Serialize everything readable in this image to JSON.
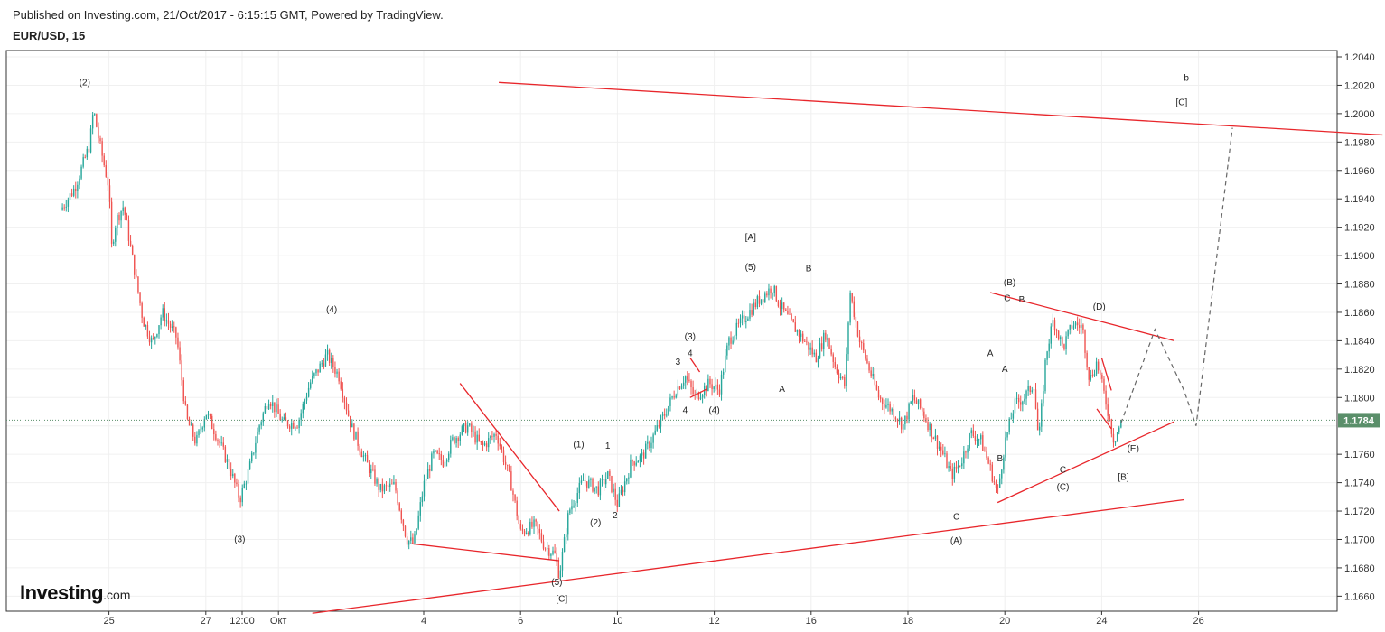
{
  "header": {
    "published": "Published on Investing.com, 21/Oct/2017 - 6:15:15 GMT, Powered by TradingView.",
    "symbol": "EUR/USD, 15"
  },
  "logo": {
    "main": "Investing",
    "sub": ".com"
  },
  "colors": {
    "up": "#26a69a",
    "down": "#ef5350",
    "trendline": "#e8262b",
    "projection": "#666666",
    "last_price_bg": "#5a8f6a",
    "grid": "#f0f0f0"
  },
  "chart_data": {
    "type": "candlestick",
    "title": "EUR/USD, 15",
    "xlabel": "",
    "ylabel": "",
    "ylim": [
      1.165,
      1.2045
    ],
    "grid": true,
    "y_ticks": [
      "1.2040",
      "1.2020",
      "1.2000",
      "1.1980",
      "1.1960",
      "1.1940",
      "1.1920",
      "1.1900",
      "1.1880",
      "1.1860",
      "1.1840",
      "1.1820",
      "1.1800",
      "1.1780",
      "1.1760",
      "1.1740",
      "1.1720",
      "1.1700",
      "1.1680",
      "1.1660"
    ],
    "x_ticks": [
      {
        "label": "25",
        "t": 1.0
      },
      {
        "label": "27",
        "t": 3.0
      },
      {
        "label": "12:00",
        "t": 3.75
      },
      {
        "label": "Окт",
        "t": 4.5
      },
      {
        "label": "4",
        "t": 7.5
      },
      {
        "label": "6",
        "t": 9.5
      },
      {
        "label": "10",
        "t": 11.5
      },
      {
        "label": "12",
        "t": 13.5
      },
      {
        "label": "16",
        "t": 15.5
      },
      {
        "label": "18",
        "t": 17.5
      },
      {
        "label": "20",
        "t": 19.5
      },
      {
        "label": "24",
        "t": 21.5
      },
      {
        "label": "26",
        "t": 23.5
      }
    ],
    "last_price": "1.1784",
    "price_path": [
      [
        0.0,
        1.1932
      ],
      [
        0.3,
        1.1948
      ],
      [
        0.6,
        1.1978
      ],
      [
        0.68,
        1.2003
      ],
      [
        0.8,
        1.198
      ],
      [
        1.0,
        1.1948
      ],
      [
        1.05,
        1.1905
      ],
      [
        1.15,
        1.1925
      ],
      [
        1.3,
        1.1935
      ],
      [
        1.5,
        1.1895
      ],
      [
        1.7,
        1.1855
      ],
      [
        1.9,
        1.1838
      ],
      [
        2.1,
        1.186
      ],
      [
        2.4,
        1.1842
      ],
      [
        2.6,
        1.1785
      ],
      [
        2.8,
        1.1768
      ],
      [
        3.0,
        1.179
      ],
      [
        3.2,
        1.1775
      ],
      [
        3.5,
        1.175
      ],
      [
        3.7,
        1.1728
      ],
      [
        3.9,
        1.175
      ],
      [
        4.1,
        1.178
      ],
      [
        4.3,
        1.18
      ],
      [
        4.6,
        1.1782
      ],
      [
        4.9,
        1.1782
      ],
      [
        5.15,
        1.181
      ],
      [
        5.5,
        1.183
      ],
      [
        5.75,
        1.1815
      ],
      [
        6.0,
        1.178
      ],
      [
        6.3,
        1.1755
      ],
      [
        6.6,
        1.1735
      ],
      [
        6.9,
        1.1738
      ],
      [
        7.15,
        1.17
      ],
      [
        7.3,
        1.1697
      ],
      [
        7.5,
        1.1738
      ],
      [
        7.7,
        1.176
      ],
      [
        7.9,
        1.1755
      ],
      [
        8.1,
        1.177
      ],
      [
        8.4,
        1.178
      ],
      [
        8.7,
        1.1765
      ],
      [
        9.0,
        1.1775
      ],
      [
        9.3,
        1.174
      ],
      [
        9.5,
        1.1705
      ],
      [
        9.8,
        1.171
      ],
      [
        10.0,
        1.1695
      ],
      [
        10.2,
        1.169
      ],
      [
        10.3,
        1.1675
      ],
      [
        10.5,
        1.172
      ],
      [
        10.8,
        1.1742
      ],
      [
        11.1,
        1.1735
      ],
      [
        11.3,
        1.1745
      ],
      [
        11.5,
        1.1725
      ],
      [
        11.8,
        1.1755
      ],
      [
        12.0,
        1.1758
      ],
      [
        12.2,
        1.177
      ],
      [
        12.5,
        1.179
      ],
      [
        12.7,
        1.1805
      ],
      [
        12.9,
        1.1815
      ],
      [
        13.1,
        1.18
      ],
      [
        13.4,
        1.181
      ],
      [
        13.6,
        1.1805
      ],
      [
        13.8,
        1.184
      ],
      [
        14.1,
        1.1855
      ],
      [
        14.4,
        1.1868
      ],
      [
        14.7,
        1.1878
      ],
      [
        14.85,
        1.1865
      ],
      [
        15.1,
        1.1852
      ],
      [
        15.4,
        1.1838
      ],
      [
        15.6,
        1.1828
      ],
      [
        15.8,
        1.1845
      ],
      [
        16.0,
        1.1822
      ],
      [
        16.2,
        1.1808
      ],
      [
        16.3,
        1.1875
      ],
      [
        16.5,
        1.184
      ],
      [
        16.7,
        1.182
      ],
      [
        16.9,
        1.18
      ],
      [
        17.2,
        1.179
      ],
      [
        17.4,
        1.178
      ],
      [
        17.6,
        1.18
      ],
      [
        17.8,
        1.179
      ],
      [
        18.0,
        1.1775
      ],
      [
        18.2,
        1.1762
      ],
      [
        18.4,
        1.1745
      ],
      [
        18.6,
        1.1755
      ],
      [
        18.8,
        1.1775
      ],
      [
        19.0,
        1.177
      ],
      [
        19.2,
        1.175
      ],
      [
        19.35,
        1.1732
      ],
      [
        19.5,
        1.1768
      ],
      [
        19.7,
        1.1795
      ],
      [
        19.9,
        1.18
      ],
      [
        20.1,
        1.181
      ],
      [
        20.2,
        1.1768
      ],
      [
        20.35,
        1.183
      ],
      [
        20.5,
        1.1855
      ],
      [
        20.7,
        1.1835
      ],
      [
        20.9,
        1.1852
      ],
      [
        21.1,
        1.185
      ],
      [
        21.25,
        1.1812
      ],
      [
        21.4,
        1.1825
      ],
      [
        21.6,
        1.1795
      ],
      [
        21.75,
        1.177
      ],
      [
        21.9,
        1.1782
      ]
    ],
    "trendlines": [
      {
        "name": "upper-resistance",
        "points": [
          [
            9.05,
            1.2022
          ],
          [
            27.3,
            1.1985
          ]
        ]
      },
      {
        "name": "lower-channel",
        "points": [
          [
            5.2,
            1.1648
          ],
          [
            23.2,
            1.1728
          ]
        ]
      },
      {
        "name": "oct-lower-support",
        "points": [
          [
            7.25,
            1.1697
          ],
          [
            10.3,
            1.1685
          ]
        ]
      },
      {
        "name": "oct-falling-line",
        "points": [
          [
            8.25,
            1.181
          ],
          [
            10.3,
            1.172
          ]
        ]
      },
      {
        "name": "triangle-upper",
        "points": [
          [
            19.2,
            1.1874
          ],
          [
            23.0,
            1.184
          ]
        ]
      },
      {
        "name": "triangle-lower",
        "points": [
          [
            19.35,
            1.1726
          ],
          [
            23.0,
            1.1783
          ]
        ]
      },
      {
        "name": "small-wave-1",
        "points": [
          [
            13.0,
            1.1828
          ],
          [
            13.2,
            1.1818
          ]
        ]
      },
      {
        "name": "small-wave-2",
        "points": [
          [
            13.0,
            1.18
          ],
          [
            13.35,
            1.1806
          ]
        ]
      },
      {
        "name": "small-wave-3",
        "points": [
          [
            21.5,
            1.1828
          ],
          [
            21.7,
            1.1805
          ]
        ]
      },
      {
        "name": "small-wave-4",
        "points": [
          [
            21.4,
            1.1792
          ],
          [
            21.7,
            1.1778
          ]
        ]
      }
    ],
    "projection": [
      [
        21.9,
        1.1782
      ],
      [
        22.6,
        1.1848
      ],
      [
        23.2,
        1.1805
      ],
      [
        23.45,
        1.178
      ],
      [
        24.2,
        1.199
      ]
    ],
    "annotations": [
      {
        "text": "(2)",
        "t": 0.5,
        "y": 1.202
      },
      {
        "text": "(3)",
        "t": 3.7,
        "y": 1.1698
      },
      {
        "text": "(4)",
        "t": 5.6,
        "y": 1.186
      },
      {
        "text": "(5)",
        "t": 10.25,
        "y": 1.1668
      },
      {
        "text": "[C]",
        "t": 10.35,
        "y": 1.1656
      },
      {
        "text": "(1)",
        "t": 10.7,
        "y": 1.1765
      },
      {
        "text": "1",
        "t": 11.3,
        "y": 1.1764
      },
      {
        "text": "(2)",
        "t": 11.05,
        "y": 1.171
      },
      {
        "text": "2",
        "t": 11.45,
        "y": 1.1715
      },
      {
        "text": "3",
        "t": 12.75,
        "y": 1.1823
      },
      {
        "text": "4",
        "t": 13.0,
        "y": 1.1829
      },
      {
        "text": "(3)",
        "t": 13.0,
        "y": 1.1841
      },
      {
        "text": "4",
        "t": 12.9,
        "y": 1.1789
      },
      {
        "text": "(4)",
        "t": 13.5,
        "y": 1.1789
      },
      {
        "text": "[A]",
        "t": 14.25,
        "y": 1.1911
      },
      {
        "text": "(5)",
        "t": 14.25,
        "y": 1.189
      },
      {
        "text": "B",
        "t": 15.45,
        "y": 1.1889
      },
      {
        "text": "A",
        "t": 14.9,
        "y": 1.1804
      },
      {
        "text": "C",
        "t": 18.5,
        "y": 1.1714
      },
      {
        "text": "(A)",
        "t": 18.5,
        "y": 1.1697
      },
      {
        "text": "B",
        "t": 19.4,
        "y": 1.1755
      },
      {
        "text": "A",
        "t": 19.2,
        "y": 1.1829
      },
      {
        "text": "A",
        "t": 19.5,
        "y": 1.1818
      },
      {
        "text": "(B)",
        "t": 19.6,
        "y": 1.1879
      },
      {
        "text": "C",
        "t": 19.55,
        "y": 1.1868
      },
      {
        "text": "B",
        "t": 19.85,
        "y": 1.1867
      },
      {
        "text": "C",
        "t": 20.7,
        "y": 1.1747
      },
      {
        "text": "(C)",
        "t": 20.7,
        "y": 1.1735
      },
      {
        "text": "(D)",
        "t": 21.45,
        "y": 1.1862
      },
      {
        "text": "(E)",
        "t": 22.15,
        "y": 1.1762
      },
      {
        "text": "[B]",
        "t": 21.95,
        "y": 1.1742
      },
      {
        "text": "[C]",
        "t": 23.15,
        "y": 1.2006
      },
      {
        "text": "b",
        "t": 23.25,
        "y": 1.2023,
        "big": true
      }
    ]
  }
}
